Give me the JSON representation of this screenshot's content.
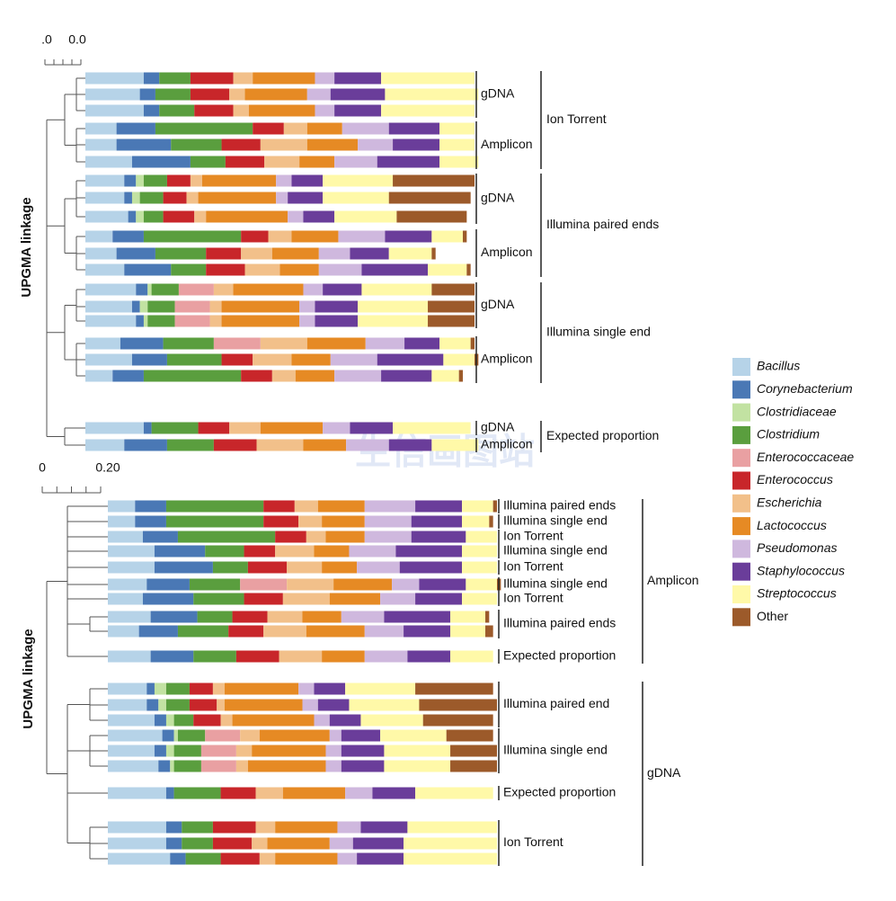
{
  "legend": {
    "series": [
      {
        "name": "Bacillus",
        "color": "#b6d3e8"
      },
      {
        "name": "Corynebacterium",
        "color": "#4a78b5"
      },
      {
        "name": "Clostridiaceae",
        "color": "#c2e2a2"
      },
      {
        "name": "Clostridium",
        "color": "#5a9e3e"
      },
      {
        "name": "Enterococcaceae",
        "color": "#e9a0a2"
      },
      {
        "name": "Enterococcus",
        "color": "#c8262a"
      },
      {
        "name": "Escherichia",
        "color": "#f2c08a"
      },
      {
        "name": "Lactococcus",
        "color": "#e68a24"
      },
      {
        "name": "Pseudomonas",
        "color": "#cfb8de"
      },
      {
        "name": "Staphylococcus",
        "color": "#6a3d9a"
      },
      {
        "name": "Streptococcus",
        "color": "#fff9a8"
      },
      {
        "name": "Other",
        "color": "#9c5a2a"
      }
    ]
  },
  "watermark": "生信画图站",
  "chart_data": [
    {
      "type": "stacked_bar",
      "ylabel": "UPGMA linkage",
      "scale_labels": [
        ".0",
        "0.0"
      ],
      "groups": [
        {
          "label": "Ion Torrent",
          "subgroups": [
            {
              "label": "gDNA",
              "bars": [
                [
                  15,
                  4,
                  0,
                  8,
                  0,
                  11,
                  5,
                  16,
                  5,
                  12,
                  24,
                  0
                ],
                [
                  14,
                  4,
                  0,
                  9,
                  0,
                  10,
                  4,
                  16,
                  6,
                  14,
                  24,
                  0
                ],
                [
                  15,
                  4,
                  0,
                  9,
                  0,
                  10,
                  4,
                  17,
                  5,
                  12,
                  24,
                  0
                ]
              ]
            },
            {
              "label": "Amplicon",
              "bars": [
                [
                  8,
                  10,
                  0,
                  25,
                  0,
                  8,
                  6,
                  9,
                  12,
                  13,
                  9,
                  0
                ],
                [
                  8,
                  14,
                  0,
                  13,
                  0,
                  10,
                  12,
                  13,
                  9,
                  12,
                  9,
                  0
                ],
                [
                  12,
                  15,
                  0,
                  9,
                  0,
                  10,
                  9,
                  9,
                  11,
                  16,
                  10,
                  0
                ]
              ]
            }
          ]
        },
        {
          "label": "Illumina paired ends",
          "subgroups": [
            {
              "label": "gDNA",
              "bars": [
                [
                  10,
                  3,
                  2,
                  6,
                  0,
                  6,
                  3,
                  19,
                  4,
                  8,
                  18,
                  21
                ],
                [
                  10,
                  2,
                  2,
                  6,
                  0,
                  6,
                  3,
                  20,
                  3,
                  9,
                  17,
                  21
                ],
                [
                  11,
                  2,
                  2,
                  5,
                  0,
                  8,
                  3,
                  21,
                  4,
                  8,
                  16,
                  18
                ]
              ]
            },
            {
              "label": "Amplicon",
              "bars": [
                [
                  7,
                  8,
                  0,
                  25,
                  0,
                  7,
                  6,
                  12,
                  12,
                  12,
                  8,
                  1
                ],
                [
                  8,
                  10,
                  0,
                  13,
                  0,
                  9,
                  8,
                  12,
                  8,
                  10,
                  11,
                  1
                ],
                [
                  10,
                  12,
                  0,
                  9,
                  0,
                  10,
                  9,
                  10,
                  11,
                  17,
                  10,
                  1
                ]
              ]
            }
          ]
        },
        {
          "label": "Illumina single end",
          "subgroups": [
            {
              "label": "gDNA",
              "bars": [
                [
                  13,
                  3,
                  1,
                  7,
                  9,
                  0,
                  5,
                  18,
                  5,
                  10,
                  18,
                  11
                ],
                [
                  12,
                  2,
                  2,
                  7,
                  9,
                  0,
                  3,
                  20,
                  4,
                  11,
                  18,
                  12
                ],
                [
                  13,
                  2,
                  1,
                  7,
                  9,
                  0,
                  3,
                  20,
                  4,
                  11,
                  18,
                  12
                ]
              ]
            },
            {
              "label": "Amplicon",
              "bars": [
                [
                  9,
                  11,
                  0,
                  13,
                  12,
                  0,
                  12,
                  15,
                  10,
                  9,
                  8,
                  1
                ],
                [
                  12,
                  9,
                  0,
                  14,
                  0,
                  8,
                  10,
                  10,
                  12,
                  17,
                  8,
                  1
                ],
                [
                  7,
                  8,
                  0,
                  25,
                  0,
                  8,
                  6,
                  10,
                  12,
                  13,
                  7,
                  1
                ]
              ]
            }
          ]
        },
        {
          "label": "Expected proportion",
          "subgroups": [
            {
              "label": "gDNA",
              "bars": [
                [
                  15,
                  2,
                  0,
                  12,
                  0,
                  8,
                  8,
                  16,
                  7,
                  11,
                  20,
                  0
                ]
              ]
            },
            {
              "label": "Amplicon",
              "bars": [
                [
                  10,
                  11,
                  0,
                  12,
                  0,
                  11,
                  12,
                  11,
                  11,
                  11,
                  12,
                  0
                ]
              ]
            }
          ]
        }
      ]
    },
    {
      "type": "stacked_bar",
      "ylabel": "UPGMA linkage",
      "scale_ticks": [
        0,
        {
          "value": 0.2,
          "label": "0.20"
        }
      ],
      "groups": [
        {
          "label": "Amplicon",
          "subgroups": [
            {
              "label": "Illumina paired ends",
              "bars": [
                [
                  7,
                  8,
                  0,
                  25,
                  0,
                  8,
                  6,
                  12,
                  13,
                  12,
                  8,
                  1
                ]
              ]
            },
            {
              "label": "Illumina single end",
              "bars": [
                [
                  7,
                  8,
                  0,
                  25,
                  0,
                  9,
                  6,
                  11,
                  12,
                  13,
                  7,
                  1
                ]
              ]
            },
            {
              "label": "Ion Torrent",
              "bars": [
                [
                  9,
                  9,
                  0,
                  25,
                  0,
                  8,
                  5,
                  10,
                  12,
                  14,
                  8,
                  0
                ]
              ]
            },
            {
              "label": "Illumina single end",
              "bars": [
                [
                  12,
                  13,
                  0,
                  10,
                  0,
                  8,
                  10,
                  9,
                  12,
                  17,
                  9,
                  0
                ]
              ]
            },
            {
              "label": "Ion Torrent",
              "bars": [
                [
                  12,
                  15,
                  0,
                  9,
                  0,
                  10,
                  9,
                  9,
                  11,
                  16,
                  9,
                  0
                ]
              ]
            },
            {
              "label": "Illumina single end",
              "bars": [
                [
                  10,
                  11,
                  0,
                  13,
                  12,
                  0,
                  12,
                  15,
                  7,
                  12,
                  8,
                  1
                ]
              ]
            },
            {
              "label": "Ion Torrent",
              "bars": [
                [
                  9,
                  13,
                  0,
                  13,
                  0,
                  10,
                  12,
                  13,
                  9,
                  12,
                  9,
                  0
                ]
              ]
            },
            {
              "label": "Illumina paired ends",
              "bars": [
                [
                  11,
                  12,
                  0,
                  9,
                  0,
                  9,
                  9,
                  10,
                  11,
                  17,
                  9,
                  1
                ],
                [
                  8,
                  10,
                  0,
                  13,
                  0,
                  9,
                  11,
                  15,
                  10,
                  12,
                  9,
                  2
                ]
              ]
            },
            {
              "label": "Expected proportion",
              "bars": [
                [
                  11,
                  11,
                  0,
                  11,
                  0,
                  11,
                  11,
                  11,
                  11,
                  11,
                  11,
                  0
                ]
              ]
            }
          ]
        },
        {
          "label": "gDNA",
          "subgroups": [
            {
              "label": "Illumina paired end",
              "bars": [
                [
                  10,
                  2,
                  3,
                  6,
                  0,
                  6,
                  3,
                  19,
                  4,
                  8,
                  18,
                  20
                ],
                [
                  10,
                  3,
                  2,
                  6,
                  0,
                  7,
                  2,
                  20,
                  4,
                  8,
                  18,
                  20
                ],
                [
                  12,
                  3,
                  2,
                  5,
                  0,
                  7,
                  3,
                  21,
                  4,
                  8,
                  16,
                  18
                ]
              ]
            },
            {
              "label": "Illumina single end",
              "bars": [
                [
                  14,
                  3,
                  1,
                  7,
                  9,
                  0,
                  5,
                  18,
                  3,
                  10,
                  17,
                  12
                ],
                [
                  12,
                  3,
                  2,
                  7,
                  9,
                  0,
                  4,
                  19,
                  4,
                  11,
                  17,
                  12
                ],
                [
                  13,
                  3,
                  1,
                  7,
                  9,
                  0,
                  3,
                  20,
                  4,
                  11,
                  17,
                  12
                ]
              ]
            },
            {
              "label": "Expected proportion",
              "bars": [
                [
                  15,
                  2,
                  0,
                  12,
                  0,
                  9,
                  7,
                  16,
                  7,
                  11,
                  20,
                  0
                ]
              ]
            },
            {
              "label": "Ion Torrent",
              "bars": [
                [
                  15,
                  4,
                  0,
                  8,
                  0,
                  11,
                  5,
                  16,
                  6,
                  12,
                  23,
                  0
                ],
                [
                  15,
                  4,
                  0,
                  8,
                  0,
                  10,
                  4,
                  16,
                  6,
                  13,
                  24,
                  0
                ],
                [
                  16,
                  4,
                  0,
                  9,
                  0,
                  10,
                  4,
                  16,
                  5,
                  12,
                  24,
                  0
                ]
              ]
            }
          ]
        }
      ]
    }
  ]
}
